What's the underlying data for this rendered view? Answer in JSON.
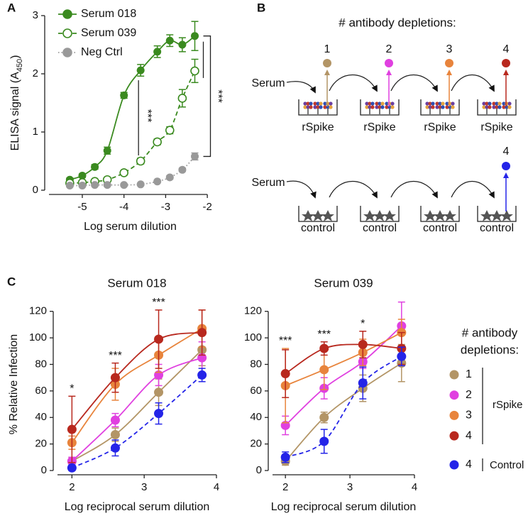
{
  "panel_labels": [
    "A",
    "B",
    "C"
  ],
  "chart_data": [
    {
      "type": "line",
      "x_label": "Log serum dilution",
      "y_label": "ELISA signal (A",
      "y_label_sub": "450",
      "y_label_end": ")",
      "x": [
        -5.3,
        -5.0,
        -4.7,
        -4.4,
        -4.0,
        -3.6,
        -3.2,
        -2.9,
        -2.6,
        -2.3
      ],
      "xlim": [
        -5.8,
        -1.9
      ],
      "ylim": [
        0,
        3
      ],
      "xticks": [
        -5,
        -4,
        -3,
        -2
      ],
      "yticks": [
        0,
        1,
        2,
        3
      ],
      "legend": "top-left",
      "series": [
        {
          "name": "Serum 018",
          "color": "#3a8a1f",
          "style": "filled-solid",
          "values": [
            0.18,
            0.25,
            0.4,
            0.68,
            1.63,
            2.06,
            2.38,
            2.57,
            2.5,
            2.65
          ],
          "errors": [
            0.03,
            0.03,
            0.04,
            0.06,
            0.05,
            0.1,
            0.1,
            0.1,
            0.12,
            0.25
          ]
        },
        {
          "name": "Serum 039",
          "color": "#3a8a1f",
          "style": "open-dashed",
          "values": [
            0.12,
            0.13,
            0.15,
            0.18,
            0.3,
            0.5,
            0.83,
            1.03,
            1.58,
            2.05
          ],
          "errors": [
            0.02,
            0.02,
            0.02,
            0.03,
            0.04,
            0.05,
            0.05,
            0.06,
            0.15,
            0.2
          ]
        },
        {
          "name": "Neg Ctrl",
          "color": "#999999",
          "style": "filled-dotted",
          "values": [
            0.08,
            0.08,
            0.09,
            0.09,
            0.09,
            0.1,
            0.15,
            0.22,
            0.35,
            0.58
          ],
          "errors": [
            0.02,
            0.02,
            0.02,
            0.02,
            0.02,
            0.02,
            0.02,
            0.03,
            0.03,
            0.06
          ]
        }
      ],
      "annotations": [
        "***",
        "***"
      ]
    },
    {
      "type": "line",
      "title": "Serum 018",
      "x_label": "Log reciprocal serum dilution",
      "y_label": "% Relative Infection",
      "x": [
        2,
        2.6,
        3.2,
        3.8
      ],
      "xlim": [
        1.8,
        4
      ],
      "ylim": [
        0,
        130
      ],
      "xticks": [
        2,
        3,
        4
      ],
      "yticks": [
        0,
        20,
        40,
        60,
        80,
        100,
        120
      ],
      "series": [
        {
          "name": "1",
          "color": "#b39566",
          "values": [
            7,
            27,
            59,
            91
          ],
          "errors": [
            3,
            5,
            10,
            12
          ]
        },
        {
          "name": "2",
          "color": "#e040e0",
          "values": [
            7,
            38,
            72,
            85
          ],
          "errors": [
            3,
            5,
            8,
            12
          ]
        },
        {
          "name": "3",
          "color": "#e8843c",
          "values": [
            21,
            65,
            87,
            107
          ],
          "errors": [
            5,
            12,
            13,
            14
          ]
        },
        {
          "name": "4",
          "color": "#b8281e",
          "values": [
            31,
            70,
            99,
            104
          ],
          "errors": [
            25,
            11,
            22,
            17
          ]
        },
        {
          "name": "4",
          "color": "#2424e8",
          "dashed": true,
          "values": [
            2,
            17,
            43,
            72
          ],
          "errors": [
            2,
            6,
            8,
            5
          ]
        }
      ],
      "annotations": [
        {
          "x": 2,
          "text": "*"
        },
        {
          "x": 2.6,
          "text": "***"
        },
        {
          "x": 3.2,
          "text": "***"
        }
      ]
    },
    {
      "type": "line",
      "title": "Serum 039",
      "x_label": "Log reciprocal serum dilution",
      "x": [
        2,
        2.6,
        3.2,
        3.8
      ],
      "xlim": [
        1.8,
        4
      ],
      "ylim": [
        0,
        130
      ],
      "xticks": [
        2,
        3,
        4
      ],
      "yticks": [
        0,
        20,
        40,
        60,
        80,
        100,
        120
      ],
      "series": [
        {
          "name": "1",
          "color": "#b39566",
          "values": [
            7,
            40,
            62,
            81
          ],
          "errors": [
            3,
            4,
            10,
            14
          ]
        },
        {
          "name": "2",
          "color": "#e040e0",
          "values": [
            34,
            62,
            82,
            109
          ],
          "errors": [
            7,
            8,
            5,
            18
          ]
        },
        {
          "name": "3",
          "color": "#e8843c",
          "values": [
            64,
            76,
            89,
            104
          ],
          "errors": [
            28,
            15,
            10,
            10
          ]
        },
        {
          "name": "4",
          "color": "#b8281e",
          "values": [
            73,
            92,
            95,
            92
          ],
          "errors": [
            18,
            5,
            10,
            12
          ]
        },
        {
          "name": "4",
          "color": "#2424e8",
          "dashed": true,
          "values": [
            10,
            22,
            66,
            86
          ],
          "errors": [
            4,
            9,
            12,
            7
          ]
        }
      ],
      "annotations": [
        {
          "x": 2,
          "text": "***"
        },
        {
          "x": 2.6,
          "text": "***"
        },
        {
          "x": 3.2,
          "text": "*"
        }
      ]
    }
  ],
  "diagram": {
    "title": "# antibody depletions:",
    "top_numbers": [
      "1",
      "2",
      "3",
      "4"
    ],
    "serum_labels": [
      "Serum",
      "Serum"
    ],
    "top_wells": [
      "rSpike",
      "rSpike",
      "rSpike",
      "rSpike"
    ],
    "bottom_number": "4",
    "bottom_wells": [
      "control",
      "control",
      "control",
      "control"
    ]
  },
  "legend_c": {
    "title": [
      "# antibody",
      "depletions:"
    ],
    "groups": [
      "rSpike",
      "Control"
    ]
  }
}
